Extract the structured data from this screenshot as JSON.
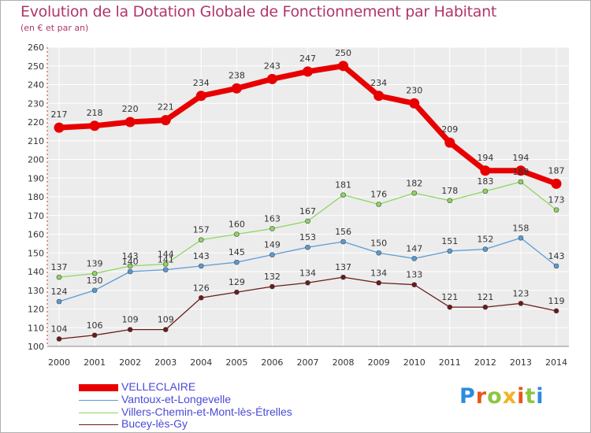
{
  "title": "Evolution de la Dotation Globale de Fonctionnement par Habitant",
  "subtitle": "(en € et par an)",
  "logo": {
    "text": "Proxiti",
    "colors": [
      "#2e8be0",
      "#e8571c",
      "#8dc63f",
      "#f0b323",
      "#e8571c",
      "#8dc63f",
      "#2e8be0"
    ]
  },
  "chart_data": {
    "type": "line",
    "title": "Evolution de la Dotation Globale de Fonctionnement par Habitant",
    "subtitle": "(en € et par an)",
    "xlabel": "",
    "ylabel": "",
    "ylim": [
      100,
      260
    ],
    "ytick_step": 10,
    "yticks": [
      "100",
      "110",
      "120",
      "130",
      "140",
      "150",
      "160",
      "170",
      "180",
      "190",
      "200",
      "210",
      "220",
      "230",
      "240",
      "250",
      "260"
    ],
    "grid": true,
    "legend_position": "bottom-left",
    "x": [
      "2000",
      "2001",
      "2002",
      "2003",
      "2004",
      "2005",
      "2006",
      "2007",
      "2008",
      "2009",
      "2010",
      "2011",
      "2012",
      "2013",
      "2014"
    ],
    "series": [
      {
        "name": "VELLECLAIRE",
        "color": "#e80000",
        "bold": true,
        "values": [
          217,
          218,
          220,
          221,
          234,
          238,
          243,
          247,
          250,
          234,
          230,
          209,
          194,
          194,
          187
        ],
        "labels": [
          "217",
          "218",
          "220",
          "221",
          "234",
          "238",
          "243",
          "247",
          "250",
          "234",
          "230",
          "209",
          "194",
          "194",
          "187"
        ]
      },
      {
        "name": "Vantoux-et-Longevelle",
        "color": "#5b9bd5",
        "bold": false,
        "values": [
          124,
          130,
          140,
          141,
          143,
          145,
          149,
          153,
          156,
          150,
          147,
          151,
          152,
          158,
          143
        ],
        "labels": [
          "124",
          "130",
          "140",
          "141",
          "143",
          "145",
          "149",
          "153",
          "156",
          "150",
          "147",
          "151",
          "152",
          "158",
          "143"
        ]
      },
      {
        "name": "Villers-Chemin-et-Mont-lès-Étrelles",
        "color": "#8ed660",
        "bold": false,
        "values": [
          137,
          139,
          143,
          144,
          157,
          160,
          163,
          167,
          181,
          176,
          182,
          178,
          183,
          188,
          173
        ],
        "labels": [
          "137",
          "139",
          "143",
          "144",
          "157",
          "160",
          "163",
          "167",
          "181",
          "176",
          "182",
          "178",
          "183",
          "188",
          "173"
        ]
      },
      {
        "name": "Bucey-lès-Gy",
        "color": "#6b1a1a",
        "bold": false,
        "values": [
          104,
          106,
          109,
          109,
          126,
          129,
          132,
          134,
          137,
          134,
          133,
          121,
          121,
          123,
          119
        ],
        "labels": [
          "104",
          "106",
          "109",
          "109",
          "126",
          "129",
          "132",
          "134",
          "137",
          "134",
          "133",
          "121",
          "121",
          "123",
          "119"
        ]
      }
    ]
  }
}
